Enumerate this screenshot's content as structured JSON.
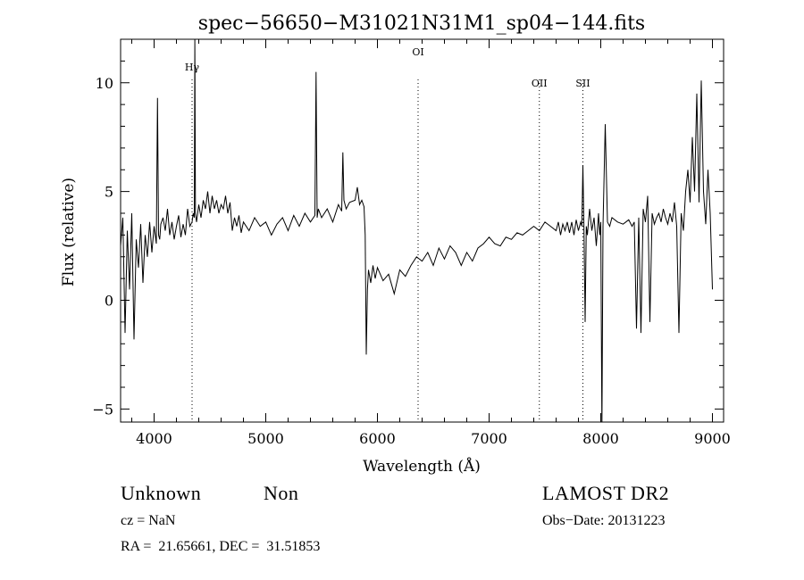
{
  "chart_data": {
    "type": "line",
    "title": "spec−56650−M31021N31M1_sp04−144.fits",
    "xlabel": "Wavelength (Å)",
    "ylabel": "Flux (relative)",
    "xlim": [
      3700,
      9100
    ],
    "ylim": [
      -5.6,
      12
    ],
    "xticks": [
      4000,
      5000,
      6000,
      7000,
      8000,
      9000
    ],
    "yticks": [
      -5,
      0,
      5,
      10
    ],
    "grid": false,
    "series": [
      {
        "x": [
          3700,
          3720,
          3740,
          3760,
          3780,
          3800,
          3820,
          3840,
          3860,
          3880,
          3900,
          3920,
          3940,
          3960,
          3980,
          4000,
          4020,
          4030,
          4040,
          4050,
          4060,
          4080,
          4100,
          4120,
          4140,
          4160,
          4180,
          4200,
          4220,
          4240,
          4260,
          4280,
          4300,
          4320,
          4340,
          4350,
          4360,
          4365,
          4370,
          4380,
          4400,
          4420,
          4440,
          4460,
          4480,
          4500,
          4520,
          4540,
          4560,
          4580,
          4600,
          4620,
          4640,
          4660,
          4680,
          4700,
          4720,
          4740,
          4760,
          4780,
          4800,
          4850,
          4900,
          4950,
          5000,
          5050,
          5100,
          5150,
          5200,
          5250,
          5300,
          5350,
          5400,
          5440,
          5450,
          5460,
          5470,
          5500,
          5550,
          5600,
          5650,
          5680,
          5690,
          5700,
          5720,
          5750,
          5800,
          5820,
          5840,
          5860,
          5880,
          5890,
          5900,
          5910,
          5920,
          5940,
          5960,
          5980,
          6000,
          6050,
          6100,
          6150,
          6200,
          6250,
          6300,
          6350,
          6400,
          6450,
          6500,
          6550,
          6600,
          6650,
          6700,
          6750,
          6800,
          6850,
          6900,
          6950,
          7000,
          7050,
          7100,
          7150,
          7200,
          7250,
          7300,
          7350,
          7400,
          7450,
          7500,
          7550,
          7600,
          7620,
          7640,
          7660,
          7680,
          7700,
          7720,
          7740,
          7760,
          7780,
          7800,
          7820,
          7830,
          7840,
          7850,
          7860,
          7870,
          7880,
          7900,
          7920,
          7940,
          7960,
          7980,
          7990,
          8000,
          8010,
          8020,
          8040,
          8060,
          8080,
          8100,
          8150,
          8200,
          8250,
          8280,
          8300,
          8320,
          8340,
          8360,
          8380,
          8400,
          8420,
          8440,
          8460,
          8480,
          8500,
          8520,
          8540,
          8560,
          8580,
          8600,
          8620,
          8640,
          8660,
          8680,
          8700,
          8720,
          8740,
          8760,
          8780,
          8800,
          8820,
          8840,
          8860,
          8880,
          8900,
          8920,
          8940,
          8960,
          8980,
          9000
        ],
        "y": [
          2.5,
          3.8,
          -1.5,
          3.2,
          0.5,
          4.0,
          -1.8,
          2.8,
          1.5,
          3.5,
          0.8,
          3.0,
          2.0,
          3.6,
          2.2,
          3.4,
          2.6,
          9.3,
          3.0,
          2.8,
          3.5,
          3.8,
          3.2,
          4.2,
          3.0,
          3.6,
          2.8,
          3.4,
          3.9,
          2.9,
          3.5,
          3.0,
          4.2,
          3.4,
          3.6,
          4.0,
          3.8,
          12.0,
          4.0,
          3.6,
          4.4,
          3.8,
          4.6,
          4.2,
          5.0,
          4.0,
          4.8,
          4.2,
          4.6,
          4.0,
          4.4,
          4.2,
          4.8,
          4.0,
          4.5,
          3.2,
          3.8,
          3.4,
          3.9,
          3.1,
          3.6,
          3.2,
          3.8,
          3.4,
          3.6,
          3.0,
          3.5,
          3.8,
          3.2,
          3.9,
          3.4,
          4.0,
          3.6,
          3.9,
          10.5,
          3.8,
          4.2,
          3.8,
          4.2,
          3.6,
          4.4,
          4.1,
          6.8,
          4.6,
          4.2,
          4.5,
          4.6,
          5.2,
          4.4,
          4.6,
          4.3,
          3.0,
          -2.5,
          0.5,
          1.4,
          0.8,
          1.6,
          1.0,
          1.5,
          0.9,
          1.2,
          0.3,
          1.4,
          1.1,
          1.6,
          2.0,
          1.8,
          2.2,
          1.6,
          2.4,
          1.9,
          2.5,
          2.2,
          1.6,
          2.2,
          1.8,
          2.4,
          2.6,
          2.9,
          2.6,
          2.5,
          2.9,
          2.8,
          3.1,
          3.0,
          3.2,
          3.4,
          3.2,
          3.6,
          3.4,
          3.2,
          3.6,
          3.0,
          3.5,
          3.2,
          3.6,
          3.1,
          3.6,
          3.0,
          3.7,
          3.2,
          3.6,
          3.4,
          6.2,
          3.0,
          -1.0,
          3.4,
          3.0,
          4.2,
          3.2,
          3.8,
          2.5,
          4.0,
          3.0,
          3.6,
          -6.0,
          3.4,
          8.1,
          3.6,
          3.4,
          3.8,
          3.6,
          3.5,
          3.7,
          3.4,
          3.6,
          -1.3,
          3.8,
          -1.5,
          4.2,
          3.6,
          4.8,
          -1.0,
          4.0,
          3.5,
          3.8,
          4.0,
          3.6,
          4.2,
          3.8,
          3.5,
          4.0,
          3.6,
          4.5,
          3.4,
          -1.5,
          4.0,
          3.2,
          5.0,
          6.0,
          4.5,
          7.5,
          5.0,
          9.5,
          4.5,
          10.1,
          5.0,
          3.5,
          6.0,
          4.0,
          0.5
        ]
      }
    ],
    "annotations": [
      {
        "label": "Hγ",
        "x": 4340
      },
      {
        "label": "OI",
        "x": 6364
      },
      {
        "label": "OII",
        "x": 7450
      },
      {
        "label": "SII",
        "x": 7840
      }
    ]
  },
  "info": {
    "class": "Unknown",
    "subclass": "Non",
    "survey": "LAMOST DR2",
    "cz": "cz = NaN",
    "obs_date": "Obs−Date: 20131223",
    "coords": "RA =  21.65661, DEC =  31.51853"
  }
}
